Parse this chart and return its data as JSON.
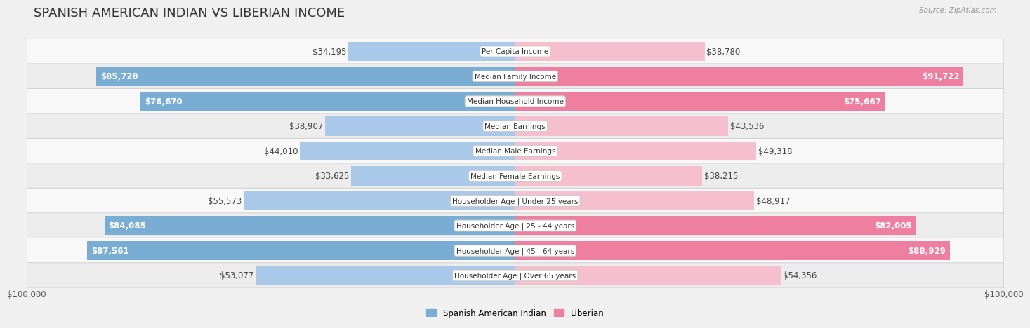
{
  "title": "SPANISH AMERICAN INDIAN VS LIBERIAN INCOME",
  "source": "Source: ZipAtlas.com",
  "categories": [
    "Per Capita Income",
    "Median Family Income",
    "Median Household Income",
    "Median Earnings",
    "Median Male Earnings",
    "Median Female Earnings",
    "Householder Age | Under 25 years",
    "Householder Age | 25 - 44 years",
    "Householder Age | 45 - 64 years",
    "Householder Age | Over 65 years"
  ],
  "left_values": [
    34195,
    85728,
    76670,
    38907,
    44010,
    33625,
    55573,
    84085,
    87561,
    53077
  ],
  "right_values": [
    38780,
    91722,
    75667,
    43536,
    49318,
    38215,
    48917,
    82005,
    88929,
    54356
  ],
  "left_labels": [
    "$34,195",
    "$85,728",
    "$76,670",
    "$38,907",
    "$44,010",
    "$33,625",
    "$55,573",
    "$84,085",
    "$87,561",
    "$53,077"
  ],
  "right_labels": [
    "$38,780",
    "$91,722",
    "$75,667",
    "$43,536",
    "$49,318",
    "$38,215",
    "$48,917",
    "$82,005",
    "$88,929",
    "$54,356"
  ],
  "max_value": 100000,
  "left_color_light": "#aac9e8",
  "left_color_dark": "#7aadd4",
  "right_color_light": "#f5bfcf",
  "right_color_dark": "#ee7fa0",
  "left_legend": "Spanish American Indian",
  "right_legend": "Liberian",
  "background_color": "#f0f0f0",
  "row_bg_even": "#f8f8f8",
  "row_bg_odd": "#ececec",
  "title_fontsize": 13,
  "label_fontsize": 8.5,
  "axis_label_fontsize": 8.5,
  "xlabel_left": "$100,000",
  "xlabel_right": "$100,000",
  "large_threshold": 65000
}
